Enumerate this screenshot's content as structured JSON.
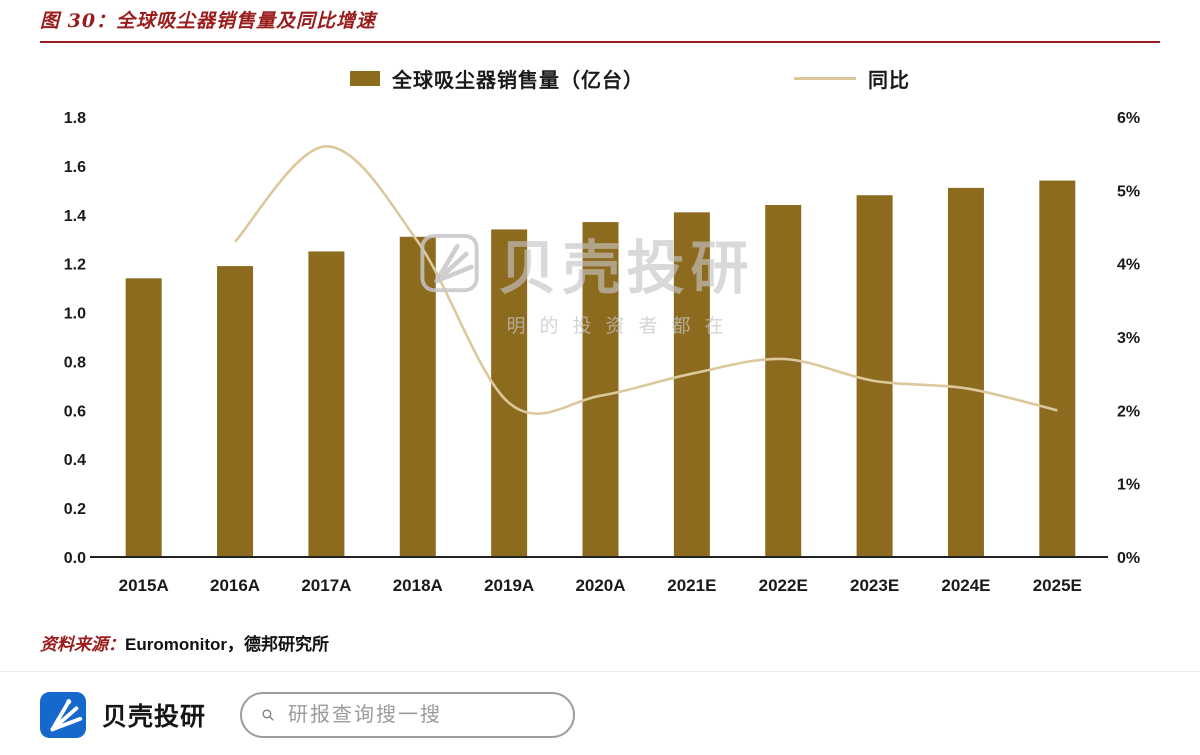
{
  "page": {
    "title": "图 30：全球吸尘器销售量及同比增速",
    "source_label": "资料来源：",
    "source_value": "Euromonitor，德邦研究所"
  },
  "watermark": {
    "brand": "贝壳投研",
    "tagline": "明的投资者都在"
  },
  "footer": {
    "brand": "贝壳投研",
    "search_placeholder": "研报查询搜一搜"
  },
  "theme": {
    "maroon": "#9a1c1c",
    "bar_color": "#8c6a1e",
    "line_color": "#dcc89c",
    "brand_blue": "#1668cc",
    "axis_text": "#1a1a1a",
    "watermark_gray": "#c4c4c4"
  },
  "chart_data": {
    "type": "bar",
    "subtype": "bar+line combo, dual axis",
    "title": "全球吸尘器销售量及同比增速",
    "categories": [
      "2015A",
      "2016A",
      "2017A",
      "2018A",
      "2019A",
      "2020A",
      "2021E",
      "2022E",
      "2023E",
      "2024E",
      "2025E"
    ],
    "series": [
      {
        "name": "全球吸尘器销售量（亿台）",
        "type": "bar",
        "axis": "left",
        "color": "#8c6a1e",
        "values": [
          1.14,
          1.19,
          1.25,
          1.31,
          1.34,
          1.37,
          1.41,
          1.44,
          1.48,
          1.51,
          1.54
        ]
      },
      {
        "name": "同比",
        "type": "line",
        "axis": "right",
        "color": "#dcc89c",
        "values": [
          null,
          4.3,
          5.6,
          4.3,
          2.1,
          2.2,
          2.5,
          2.7,
          2.4,
          2.3,
          2.0
        ]
      }
    ],
    "left_axis": {
      "min": 0,
      "max": 1.8,
      "step": 0.2
    },
    "right_axis": {
      "min": 0,
      "max": 6,
      "step": 1,
      "suffix": "%"
    },
    "grid": false,
    "legend_position": "top"
  }
}
